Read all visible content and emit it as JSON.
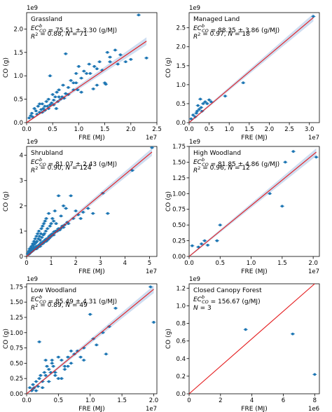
{
  "figure": {
    "xlabel": "FRE (MJ)",
    "ylabel": "CO (g)",
    "colors": {
      "points": "#1f77b4",
      "fit": "#e41a1c",
      "band": "#aec7e8"
    }
  },
  "chart_data": [
    {
      "type": "scatter",
      "title": "Grassland",
      "stats": [
        "EC_CO^b = 75.51 ± 3.30 (g/MJ)",
        "R^2 = 0.88, N = 71"
      ],
      "x_multiplier": "1e7",
      "y_multiplier": "1e9",
      "xlim": [
        0,
        2.5
      ],
      "ylim": [
        0,
        2.35
      ],
      "xticks": [
        0.0,
        0.5,
        1.0,
        1.5,
        2.0,
        2.5
      ],
      "yticks": [
        0.0,
        0.5,
        1.0,
        1.5,
        2.0
      ],
      "fit_line": [
        [
          0,
          0
        ],
        [
          2.3,
          1.74
        ]
      ],
      "x": [
        0.05,
        0.08,
        0.1,
        0.12,
        0.15,
        0.18,
        0.2,
        0.22,
        0.25,
        0.28,
        0.3,
        0.32,
        0.35,
        0.38,
        0.4,
        0.42,
        0.45,
        0.48,
        0.5,
        0.52,
        0.55,
        0.58,
        0.6,
        0.62,
        0.65,
        0.7,
        0.75,
        0.8,
        0.85,
        0.9,
        0.95,
        1.0,
        1.05,
        1.1,
        1.2,
        1.3,
        1.35,
        1.4,
        1.5,
        1.55,
        1.6,
        1.7,
        1.8,
        1.9,
        2.0,
        2.15,
        2.3,
        0.45,
        0.62,
        0.8,
        1.05,
        1.28,
        1.52,
        0.35,
        0.57,
        0.75,
        0.98,
        1.15,
        1.45,
        0.25,
        0.42,
        0.68,
        0.9,
        1.22,
        1.6,
        0.3,
        0.52,
        0.72,
        0.95,
        1.35,
        1.75
      ],
      "y": [
        0.1,
        0.15,
        0.2,
        0.12,
        0.3,
        0.25,
        0.18,
        0.35,
        0.22,
        0.28,
        0.4,
        0.3,
        0.26,
        0.45,
        0.35,
        0.5,
        0.38,
        0.42,
        0.6,
        0.48,
        0.55,
        0.65,
        0.45,
        0.7,
        0.5,
        0.8,
        1.47,
        0.75,
        0.9,
        0.85,
        1.05,
        1.2,
        0.95,
        1.1,
        1.25,
        1.2,
        0.8,
        1.3,
        0.85,
        1.5,
        1.4,
        1.55,
        1.45,
        1.3,
        1.35,
        2.3,
        1.38,
        1.0,
        0.55,
        0.6,
        0.65,
        0.72,
        0.82,
        0.35,
        0.3,
        0.62,
        0.7,
        1.05,
        1.12,
        0.4,
        0.3,
        0.55,
        0.7,
        1.05,
        1.3,
        0.22,
        0.38,
        0.52,
        0.85,
        1.15,
        1.25
      ]
    },
    {
      "type": "scatter",
      "title": "Managed Land",
      "stats": [
        "EC_CO^b = 88.35 ± 3.86 (g/MJ)",
        "R^2 = 0.97, N = 18"
      ],
      "x_multiplier": "1e7",
      "y_multiplier": "1e9",
      "xlim": [
        0,
        3.25
      ],
      "ylim": [
        0,
        2.9
      ],
      "xticks": [
        0.0,
        0.5,
        1.0,
        1.5,
        2.0,
        2.5,
        3.0
      ],
      "yticks": [
        0.0,
        0.5,
        1.0,
        1.5,
        2.0,
        2.5
      ],
      "fit_line": [
        [
          0,
          0
        ],
        [
          3.1,
          2.77
        ]
      ],
      "x": [
        0.05,
        0.1,
        0.15,
        0.2,
        0.22,
        0.25,
        0.3,
        0.32,
        0.35,
        0.4,
        0.45,
        0.5,
        0.55,
        0.9,
        1.35,
        3.1,
        0.28,
        0.18
      ],
      "y": [
        0.1,
        0.2,
        0.15,
        0.3,
        0.45,
        0.35,
        0.4,
        0.3,
        0.5,
        0.55,
        0.5,
        0.6,
        0.55,
        0.7,
        1.05,
        2.8,
        0.62,
        0.25
      ]
    },
    {
      "type": "scatter",
      "title": "Shrubland",
      "stats": [
        "EC_CO^b = 81.07 ± 2.43 (g/MJ)",
        "R^2 = 0.90, N = 124"
      ],
      "x_multiplier": "1e7",
      "y_multiplier": "1e9",
      "xlim": [
        0,
        5.3
      ],
      "ylim": [
        0,
        4.35
      ],
      "xticks": [
        0,
        1,
        2,
        3,
        4,
        5
      ],
      "yticks": [
        0,
        1,
        2,
        3,
        4
      ],
      "fit_line": [
        [
          0,
          0
        ],
        [
          5.1,
          4.13
        ]
      ],
      "x": [
        0.05,
        0.08,
        0.1,
        0.12,
        0.15,
        0.18,
        0.2,
        0.22,
        0.25,
        0.28,
        0.3,
        0.33,
        0.35,
        0.38,
        0.4,
        0.42,
        0.45,
        0.48,
        0.5,
        0.52,
        0.55,
        0.58,
        0.6,
        0.62,
        0.65,
        0.68,
        0.7,
        0.72,
        0.75,
        0.78,
        0.8,
        0.85,
        0.9,
        0.95,
        1.0,
        1.05,
        1.1,
        1.15,
        1.2,
        1.3,
        1.4,
        1.5,
        1.6,
        1.8,
        2.0,
        2.2,
        2.5,
        2.7,
        3.1,
        3.3,
        4.3,
        5.1,
        0.3,
        0.5,
        0.7,
        0.9,
        0.4,
        0.6,
        0.8,
        1.0,
        0.2,
        0.35,
        0.55,
        0.75,
        0.95,
        1.25,
        0.15,
        0.45,
        0.65,
        0.85,
        1.1,
        1.35,
        0.25,
        0.5,
        0.7,
        0.9,
        1.2,
        1.45,
        0.1,
        0.3,
        0.6,
        0.8,
        1.0,
        1.5,
        1.7,
        1.9,
        2.1,
        2.3,
        0.4,
        0.6,
        0.8,
        1.05,
        1.3,
        1.55,
        0.2,
        0.35,
        0.55,
        0.75,
        0.95,
        1.15,
        1.4,
        1.65,
        0.12,
        0.28,
        0.42,
        0.58,
        0.72,
        0.88,
        1.02,
        1.18,
        0.18,
        0.38,
        0.52,
        0.68,
        0.82,
        0.98,
        1.12,
        1.28,
        0.08,
        0.22,
        0.48,
        0.62,
        0.78,
        0.92
      ],
      "y": [
        0.1,
        0.2,
        0.15,
        0.3,
        0.25,
        0.35,
        0.4,
        0.3,
        0.5,
        0.45,
        0.6,
        0.5,
        0.7,
        0.55,
        0.8,
        0.6,
        0.9,
        0.7,
        1.0,
        0.8,
        0.65,
        0.9,
        1.1,
        0.75,
        1.2,
        0.85,
        1.3,
        0.9,
        1.4,
        1.0,
        1.5,
        1.1,
        1.7,
        1.2,
        1.3,
        1.5,
        1.4,
        1.8,
        1.3,
        2.4,
        1.6,
        2.0,
        1.9,
        2.4,
        1.8,
        1.5,
        1.9,
        1.7,
        2.5,
        1.7,
        3.4,
        4.3,
        0.35,
        0.45,
        0.55,
        0.7,
        0.3,
        0.5,
        0.6,
        0.8,
        0.2,
        0.3,
        0.4,
        0.6,
        0.75,
        1.0,
        0.15,
        0.35,
        0.5,
        0.65,
        0.85,
        1.05,
        0.25,
        0.4,
        0.55,
        0.75,
        1.0,
        1.2,
        0.1,
        0.28,
        0.48,
        0.68,
        0.82,
        1.15,
        1.3,
        1.5,
        1.65,
        1.75,
        0.4,
        0.55,
        0.65,
        0.9,
        1.1,
        1.25,
        0.22,
        0.32,
        0.48,
        0.62,
        0.78,
        0.95,
        1.12,
        1.35,
        0.12,
        0.25,
        0.38,
        0.52,
        0.62,
        0.72,
        0.88,
        1.0,
        0.18,
        0.32,
        0.45,
        0.58,
        0.7,
        0.85,
        0.98,
        1.08,
        0.08,
        0.2,
        0.42,
        0.55,
        0.68,
        0.8
      ]
    },
    {
      "type": "scatter",
      "title": "High Woodland",
      "stats": [
        "EC_CO^b = 81.85 ± 4.86 (g/MJ)",
        "R^2 = 0.96, N = 12"
      ],
      "x_multiplier": "1e7",
      "y_multiplier": "1e9",
      "xlim": [
        0,
        2.1
      ],
      "ylim": [
        0,
        1.75
      ],
      "xticks": [
        0.0,
        0.5,
        1.0,
        1.5,
        2.0
      ],
      "yticks": [
        0.0,
        0.25,
        0.5,
        0.75,
        1.0,
        1.25,
        1.5,
        1.75
      ],
      "fit_line": [
        [
          0,
          0
        ],
        [
          2.05,
          1.66
        ]
      ],
      "x": [
        0.05,
        0.15,
        0.2,
        0.25,
        0.3,
        0.45,
        0.5,
        1.3,
        1.5,
        1.55,
        1.68,
        2.05
      ],
      "y": [
        0.17,
        0.15,
        0.2,
        0.25,
        0.18,
        0.25,
        0.5,
        1.0,
        0.8,
        1.5,
        1.67,
        1.58
      ]
    },
    {
      "type": "scatter",
      "title": "Low Woodland",
      "stats": [
        "EC_CO^b = 85.49 ± 4.31 (g/MJ)",
        "R^2 = 0.89, N = 49"
      ],
      "x_multiplier": "1e7",
      "y_multiplier": "1e9",
      "xlim": [
        0,
        2.05
      ],
      "ylim": [
        0,
        1.8
      ],
      "xticks": [
        0.0,
        0.5,
        1.0,
        1.5,
        2.0
      ],
      "yticks": [
        0.0,
        0.25,
        0.5,
        0.75,
        1.0,
        1.25,
        1.5,
        1.75
      ],
      "fit_line": [
        [
          0,
          0
        ],
        [
          2.0,
          1.71
        ]
      ],
      "x": [
        0.05,
        0.08,
        0.1,
        0.12,
        0.15,
        0.18,
        0.2,
        0.22,
        0.25,
        0.28,
        0.3,
        0.32,
        0.35,
        0.38,
        0.4,
        0.42,
        0.45,
        0.5,
        0.55,
        0.6,
        0.65,
        0.7,
        0.75,
        0.8,
        0.85,
        0.9,
        1.0,
        1.05,
        1.1,
        1.2,
        1.3,
        1.4,
        1.95,
        2.0,
        0.5,
        0.2,
        0.3,
        0.4,
        0.6,
        0.7,
        0.15,
        0.25,
        0.35,
        0.45,
        0.55,
        0.65,
        0.9,
        1.25,
        0.1
      ],
      "y": [
        0.1,
        0.05,
        0.15,
        0.1,
        0.2,
        0.12,
        0.25,
        0.3,
        0.2,
        0.35,
        0.3,
        0.45,
        0.4,
        0.35,
        0.5,
        0.45,
        0.3,
        0.6,
        0.55,
        0.4,
        0.6,
        0.5,
        0.65,
        0.7,
        0.6,
        0.75,
        1.3,
        0.9,
        0.8,
        1.0,
        1.1,
        1.4,
        1.75,
        1.17,
        0.25,
        0.85,
        0.55,
        0.55,
        0.45,
        0.7,
        0.05,
        0.1,
        0.2,
        0.35,
        0.25,
        0.45,
        0.55,
        0.65,
        0.08
      ]
    },
    {
      "type": "scatter",
      "title": "Closed Canopy Forest",
      "stats": [
        "EC_CO^b = 156.67 (g/MJ)",
        "N = 3"
      ],
      "x_multiplier": "1e6",
      "y_multiplier": "1e9",
      "xlim": [
        0,
        8.3
      ],
      "ylim": [
        0,
        1.25
      ],
      "xticks": [
        0,
        2,
        4,
        6,
        8
      ],
      "yticks": [
        0.0,
        0.2,
        0.4,
        0.6,
        0.8,
        1.0,
        1.2
      ],
      "fit_line": [
        [
          0,
          0
        ],
        [
          8.0,
          1.25
        ]
      ],
      "no_band": true,
      "x": [
        3.6,
        6.6,
        8.0
      ],
      "y": [
        0.73,
        0.68,
        0.22
      ]
    }
  ]
}
